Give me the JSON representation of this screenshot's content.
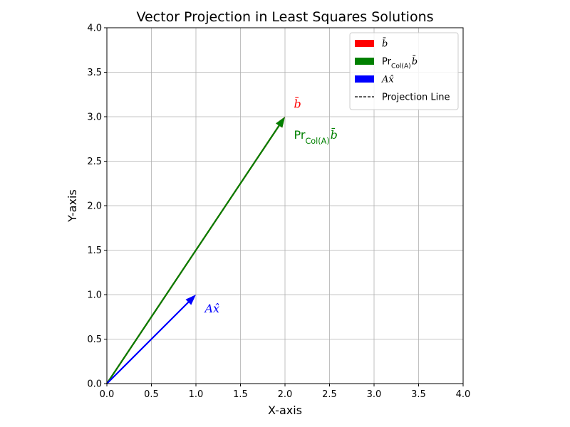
{
  "chart_data": {
    "type": "quiver",
    "title": "Vector Projection in Least Squares Solutions",
    "xlabel": "X-axis",
    "ylabel": "Y-axis",
    "xlim": [
      0,
      4
    ],
    "ylim": [
      0,
      4
    ],
    "xticks": [
      "0.0",
      "0.5",
      "1.0",
      "1.5",
      "2.0",
      "2.5",
      "3.0",
      "3.5",
      "4.0"
    ],
    "yticks": [
      "0.0",
      "0.5",
      "1.0",
      "1.5",
      "2.0",
      "2.5",
      "3.0",
      "3.5",
      "4.0"
    ],
    "grid": true,
    "legend_position": "top-right",
    "vectors": [
      {
        "id": "b",
        "label": "b̄",
        "start": [
          0,
          0
        ],
        "end": [
          2,
          3
        ],
        "color": "#ff0000"
      },
      {
        "id": "proj",
        "label": "Pr_Col(A) b̄",
        "start": [
          0,
          0
        ],
        "end": [
          2,
          3
        ],
        "color": "#008000"
      },
      {
        "id": "ax",
        "label": "Ax̂",
        "start": [
          0,
          0
        ],
        "end": [
          1,
          1
        ],
        "color": "#0000ff"
      }
    ],
    "legend": [
      {
        "id": "b",
        "label": "b̄",
        "color": "#ff0000",
        "style": "patch"
      },
      {
        "id": "proj",
        "label": "Pr_Col(A) b̄",
        "color": "#008000",
        "style": "patch"
      },
      {
        "id": "ax",
        "label": "Ax̂",
        "color": "#0000ff",
        "style": "patch"
      },
      {
        "id": "projline",
        "label": "Projection Line",
        "color": "#000000",
        "style": "dashed"
      }
    ],
    "annotations": [
      {
        "id": "b",
        "text": "b̄",
        "at": [
          2.1,
          3.15
        ],
        "color": "#ff0000"
      },
      {
        "id": "proj",
        "text": "Pr_Col(A) b̄",
        "at": [
          2.1,
          2.8
        ],
        "color": "#008000"
      },
      {
        "id": "ax",
        "text": "Ax̂",
        "at": [
          1.1,
          0.85
        ],
        "color": "#0000ff"
      }
    ]
  }
}
